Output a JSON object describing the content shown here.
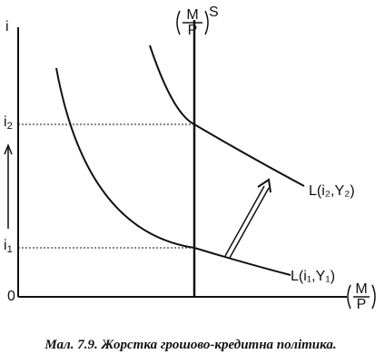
{
  "axes": {
    "y_label": {
      "base": "i"
    },
    "origin": "0",
    "x_label": {
      "numerator": "M",
      "denominator": "P"
    }
  },
  "levels": [
    {
      "base": "i",
      "sub": "2"
    },
    {
      "base": "i",
      "sub": "1"
    }
  ],
  "supply": {
    "numerator": "M",
    "denominator": "P",
    "sup": "S"
  },
  "curves": [
    {
      "label": "L(i₁,Y₁)"
    },
    {
      "label": "L(i₂,Y₂)"
    }
  ],
  "caption": {
    "label": "Мал. 7.9.",
    "text": "Жорстка грошово-кредитна політика."
  }
}
